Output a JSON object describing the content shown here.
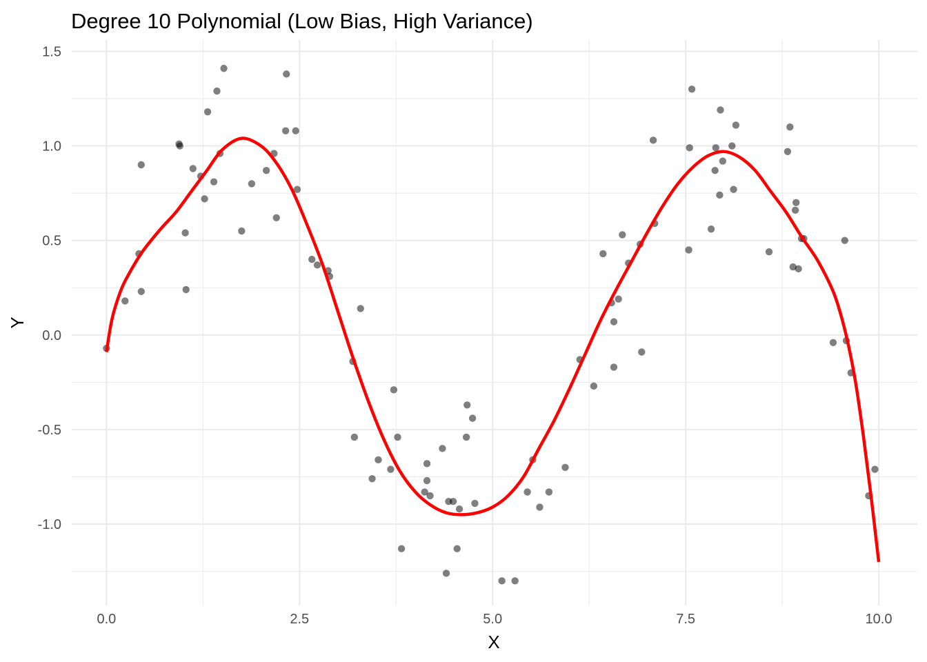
{
  "chart_data": {
    "type": "scatter",
    "title": "Degree 10 Polynomial (Low Bias, High Variance)",
    "xlabel": "X",
    "ylabel": "Y",
    "xlim": [
      -0.45,
      10.5
    ],
    "ylim": [
      -1.43,
      1.56
    ],
    "x_ticks": [
      0.0,
      2.5,
      5.0,
      7.5,
      10.0
    ],
    "x_tick_labels": [
      "0.0",
      "2.5",
      "5.0",
      "7.5",
      "10.0"
    ],
    "y_ticks": [
      -1.0,
      -0.5,
      0.0,
      0.5,
      1.0,
      1.5
    ],
    "y_tick_labels": [
      "-1.0",
      "-0.5",
      "0.0",
      "0.5",
      "1.0",
      "1.5"
    ],
    "grid": true,
    "point_color": "#000000",
    "point_opacity": 0.5,
    "line_color": "#ff0000",
    "points": [
      [
        0.0,
        -0.07
      ],
      [
        0.24,
        0.18
      ],
      [
        0.42,
        0.43
      ],
      [
        0.45,
        0.9
      ],
      [
        0.45,
        0.23
      ],
      [
        0.94,
        1.01
      ],
      [
        0.95,
        1.0
      ],
      [
        1.02,
        0.54
      ],
      [
        1.03,
        0.24
      ],
      [
        1.12,
        0.88
      ],
      [
        1.22,
        0.84
      ],
      [
        1.27,
        0.72
      ],
      [
        1.31,
        1.18
      ],
      [
        1.39,
        0.81
      ],
      [
        1.43,
        1.29
      ],
      [
        1.47,
        0.96
      ],
      [
        1.52,
        1.41
      ],
      [
        1.75,
        0.55
      ],
      [
        1.88,
        0.8
      ],
      [
        2.07,
        0.87
      ],
      [
        2.17,
        0.96
      ],
      [
        2.2,
        0.62
      ],
      [
        2.32,
        1.08
      ],
      [
        2.33,
        1.38
      ],
      [
        2.45,
        1.08
      ],
      [
        2.47,
        0.77
      ],
      [
        2.66,
        0.4
      ],
      [
        2.73,
        0.37
      ],
      [
        2.87,
        0.34
      ],
      [
        2.89,
        0.31
      ],
      [
        3.19,
        -0.14
      ],
      [
        3.21,
        -0.54
      ],
      [
        3.29,
        0.14
      ],
      [
        3.44,
        -0.76
      ],
      [
        3.52,
        -0.66
      ],
      [
        3.68,
        -0.71
      ],
      [
        3.72,
        -0.29
      ],
      [
        3.77,
        -0.54
      ],
      [
        3.82,
        -1.13
      ],
      [
        4.12,
        -0.83
      ],
      [
        4.15,
        -0.68
      ],
      [
        4.15,
        -0.77
      ],
      [
        4.19,
        -0.85
      ],
      [
        4.35,
        -0.6
      ],
      [
        4.4,
        -1.26
      ],
      [
        4.43,
        -0.88
      ],
      [
        4.49,
        -0.88
      ],
      [
        4.54,
        -1.13
      ],
      [
        4.57,
        -0.92
      ],
      [
        4.66,
        -0.54
      ],
      [
        4.67,
        -0.37
      ],
      [
        4.74,
        -0.44
      ],
      [
        4.77,
        -0.89
      ],
      [
        5.12,
        -1.3
      ],
      [
        5.29,
        -1.3
      ],
      [
        5.45,
        -0.83
      ],
      [
        5.52,
        -0.66
      ],
      [
        5.61,
        -0.91
      ],
      [
        5.73,
        -0.83
      ],
      [
        5.94,
        -0.7
      ],
      [
        6.13,
        -0.13
      ],
      [
        6.31,
        -0.27
      ],
      [
        6.43,
        0.43
      ],
      [
        6.54,
        0.17
      ],
      [
        6.57,
        0.07
      ],
      [
        6.57,
        -0.17
      ],
      [
        6.63,
        0.19
      ],
      [
        6.68,
        0.53
      ],
      [
        6.76,
        0.38
      ],
      [
        6.91,
        0.48
      ],
      [
        6.93,
        -0.09
      ],
      [
        7.08,
        1.03
      ],
      [
        7.1,
        0.59
      ],
      [
        7.54,
        0.45
      ],
      [
        7.55,
        0.99
      ],
      [
        7.58,
        1.3
      ],
      [
        7.83,
        0.56
      ],
      [
        7.88,
        0.87
      ],
      [
        7.89,
        0.99
      ],
      [
        7.94,
        0.74
      ],
      [
        7.95,
        1.19
      ],
      [
        7.98,
        0.92
      ],
      [
        8.1,
        1.0
      ],
      [
        8.12,
        0.77
      ],
      [
        8.15,
        1.11
      ],
      [
        8.58,
        0.44
      ],
      [
        8.82,
        0.97
      ],
      [
        8.85,
        1.1
      ],
      [
        8.89,
        0.36
      ],
      [
        8.92,
        0.66
      ],
      [
        8.93,
        0.7
      ],
      [
        8.96,
        0.35
      ],
      [
        9.0,
        0.51
      ],
      [
        9.03,
        0.51
      ],
      [
        9.41,
        -0.04
      ],
      [
        9.56,
        0.5
      ],
      [
        9.58,
        -0.03
      ],
      [
        9.64,
        -0.2
      ],
      [
        9.87,
        -0.85
      ],
      [
        9.95,
        -0.71
      ]
    ],
    "fit_curve": [
      [
        0.0,
        -0.09
      ],
      [
        0.05,
        0.04
      ],
      [
        0.1,
        0.13
      ],
      [
        0.2,
        0.25
      ],
      [
        0.3,
        0.33
      ],
      [
        0.4,
        0.4
      ],
      [
        0.5,
        0.46
      ],
      [
        0.7,
        0.56
      ],
      [
        0.9,
        0.65
      ],
      [
        1.1,
        0.76
      ],
      [
        1.3,
        0.87
      ],
      [
        1.5,
        0.98
      ],
      [
        1.75,
        1.04
      ],
      [
        2.0,
        1.0
      ],
      [
        2.2,
        0.91
      ],
      [
        2.4,
        0.77
      ],
      [
        2.6,
        0.58
      ],
      [
        2.8,
        0.37
      ],
      [
        3.0,
        0.12
      ],
      [
        3.2,
        -0.13
      ],
      [
        3.4,
        -0.36
      ],
      [
        3.6,
        -0.56
      ],
      [
        3.8,
        -0.72
      ],
      [
        4.0,
        -0.83
      ],
      [
        4.2,
        -0.9
      ],
      [
        4.4,
        -0.94
      ],
      [
        4.6,
        -0.95
      ],
      [
        4.8,
        -0.94
      ],
      [
        5.0,
        -0.91
      ],
      [
        5.2,
        -0.85
      ],
      [
        5.4,
        -0.75
      ],
      [
        5.6,
        -0.6
      ],
      [
        5.8,
        -0.45
      ],
      [
        6.0,
        -0.28
      ],
      [
        6.2,
        -0.1
      ],
      [
        6.4,
        0.08
      ],
      [
        6.6,
        0.24
      ],
      [
        6.8,
        0.39
      ],
      [
        7.0,
        0.54
      ],
      [
        7.2,
        0.68
      ],
      [
        7.4,
        0.8
      ],
      [
        7.6,
        0.89
      ],
      [
        7.8,
        0.95
      ],
      [
        8.0,
        0.97
      ],
      [
        8.2,
        0.94
      ],
      [
        8.4,
        0.87
      ],
      [
        8.6,
        0.76
      ],
      [
        8.8,
        0.65
      ],
      [
        9.0,
        0.52
      ],
      [
        9.2,
        0.4
      ],
      [
        9.4,
        0.24
      ],
      [
        9.5,
        0.12
      ],
      [
        9.6,
        -0.04
      ],
      [
        9.7,
        -0.25
      ],
      [
        9.8,
        -0.53
      ],
      [
        9.9,
        -0.85
      ],
      [
        10.0,
        -1.2
      ]
    ]
  }
}
